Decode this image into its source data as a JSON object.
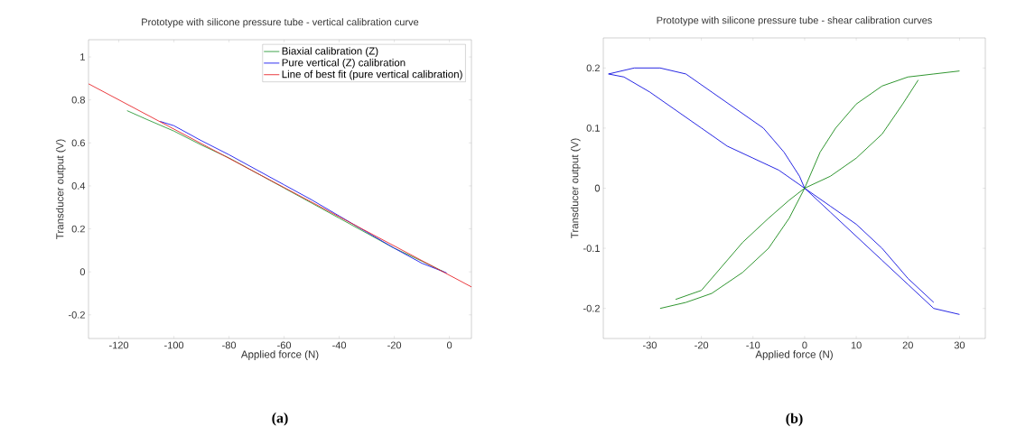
{
  "chart_data": [
    {
      "type": "line",
      "title": "Prototype with silicone pressure tube - vertical calibration curve",
      "xlabel": "Applied force (N)",
      "ylabel": "Transducer output (V)",
      "xlim": [
        -131,
        8
      ],
      "ylim": [
        -0.31,
        1.08
      ],
      "xticks": [
        -120,
        -100,
        -80,
        -60,
        -40,
        -20,
        0
      ],
      "yticks": [
        -0.2,
        0,
        0.2,
        0.4,
        0.6,
        0.8,
        1
      ],
      "legend": "top right",
      "annotations": [
        "(a)"
      ],
      "series": [
        {
          "name": "Biaxial calibration (Z)",
          "color": "#2e9a3a",
          "x": [
            -117,
            -110,
            -100,
            -90,
            -80,
            -70,
            -60,
            -50,
            -40,
            -30,
            -20,
            -10,
            -2
          ],
          "values": [
            0.75,
            0.71,
            0.655,
            0.59,
            0.53,
            0.46,
            0.39,
            0.32,
            0.25,
            0.18,
            0.11,
            0.05,
            0.0
          ]
        },
        {
          "name": "Pure vertical (Z) calibration",
          "color": "#1a1aee",
          "x": [
            -105,
            -100,
            -90,
            -80,
            -70,
            -60,
            -50,
            -40,
            -30,
            -20,
            -10,
            -5,
            -1
          ],
          "values": [
            0.7,
            0.68,
            0.61,
            0.545,
            0.475,
            0.405,
            0.335,
            0.26,
            0.185,
            0.11,
            0.04,
            0.015,
            -0.005
          ]
        },
        {
          "name": "Line of best fit (pure vertical calibration)",
          "color": "#e8262a",
          "x": [
            -131,
            8
          ],
          "values": [
            0.875,
            -0.07
          ]
        }
      ]
    },
    {
      "type": "line",
      "title": "Prototype with silicone pressure tube - shear calibration curves",
      "xlabel": "Applied force (N)",
      "ylabel": "Transducer output (V)",
      "xlim": [
        -39,
        35
      ],
      "ylim": [
        -0.25,
        0.25
      ],
      "xticks": [
        -30,
        -20,
        -10,
        0,
        10,
        20,
        30
      ],
      "yticks": [
        -0.2,
        -0.1,
        0,
        0.1,
        0.2
      ],
      "annotations": [
        "(b)"
      ],
      "series": [
        {
          "color": "#1010e0",
          "x": [
            -38,
            -35,
            -30,
            -25,
            -20,
            -15,
            -10,
            -5,
            0,
            5,
            10,
            15,
            20,
            25,
            30
          ],
          "values": [
            0.19,
            0.185,
            0.16,
            0.13,
            0.1,
            0.07,
            0.05,
            0.03,
            0,
            -0.04,
            -0.08,
            -0.12,
            -0.16,
            -0.2,
            -0.21
          ]
        },
        {
          "color": "#1010e0",
          "x": [
            -38,
            -33,
            -28,
            -23,
            -18,
            -13,
            -8,
            -4,
            -1,
            0,
            5,
            10,
            15,
            20,
            25
          ],
          "values": [
            0.19,
            0.2,
            0.2,
            0.19,
            0.16,
            0.13,
            0.1,
            0.06,
            0.02,
            0,
            -0.03,
            -0.06,
            -0.1,
            -0.15,
            -0.19
          ]
        },
        {
          "color": "#1a8a1a",
          "x": [
            -28,
            -23,
            -18,
            -12,
            -7,
            -3,
            0,
            3,
            6,
            10,
            15,
            20,
            25,
            30
          ],
          "values": [
            -0.2,
            -0.19,
            -0.175,
            -0.14,
            -0.1,
            -0.05,
            0,
            0.06,
            0.1,
            0.14,
            0.17,
            0.185,
            0.19,
            0.195
          ]
        },
        {
          "color": "#1a8a1a",
          "x": [
            -25,
            -20,
            -16,
            -12,
            -7,
            -3,
            0,
            5,
            10,
            15,
            19,
            22
          ],
          "values": [
            -0.185,
            -0.17,
            -0.13,
            -0.09,
            -0.05,
            -0.02,
            0,
            0.02,
            0.05,
            0.09,
            0.14,
            0.18
          ]
        }
      ]
    }
  ]
}
